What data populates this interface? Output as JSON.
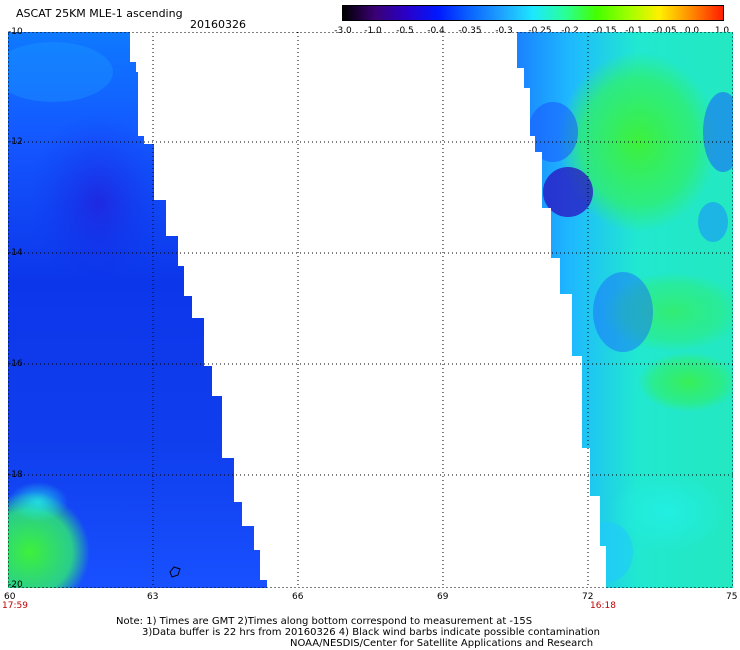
{
  "header": {
    "title": "ASCAT 25KM MLE-1 ascending",
    "date": "20160326"
  },
  "colorbar": {
    "tick_labels": [
      "-3.0",
      "-1.0",
      "-0.5",
      "-0.4",
      "-0.35",
      "-0.3",
      "-0.25",
      "-0.2",
      "-0.15",
      "-0.1",
      "-0.05",
      "0.0",
      "1.0"
    ],
    "colors": [
      "#000000",
      "#3a0073",
      "#2a00c8",
      "#0018ff",
      "#0a63ff",
      "#1ea2ff",
      "#1de7ff",
      "#29ff9a",
      "#43ff00",
      "#9eff00",
      "#fff000",
      "#ff8a00",
      "#ff1d00"
    ]
  },
  "map": {
    "lon_labels": [
      "60",
      "63",
      "66",
      "69",
      "72",
      "75"
    ],
    "lat_labels": [
      "-10",
      "-12",
      "-14",
      "-16",
      "-18",
      "-20"
    ],
    "time_left": "17:59",
    "time_right": "16:18",
    "left_swath": {
      "lon_range": [
        60,
        65.2
      ],
      "colors": [
        "#0a45f5",
        "#0b33e8",
        "#1560ff",
        "#25e06f"
      ]
    },
    "right_swath": {
      "lon_range": [
        71.2,
        75
      ],
      "colors": [
        "#1a92ff",
        "#1ed7ff",
        "#25ee9b",
        "#38f04e"
      ]
    }
  },
  "notes": {
    "line1": "Note: 1) Times are GMT 2)Times along bottom correspond to measurement at -15S",
    "line2": "3)Data buffer is 22 hrs from 20160326 4) Black wind barbs indicate possible contamination",
    "line3": "NOAA/NESDIS/Center for Satellite Applications and Research"
  }
}
